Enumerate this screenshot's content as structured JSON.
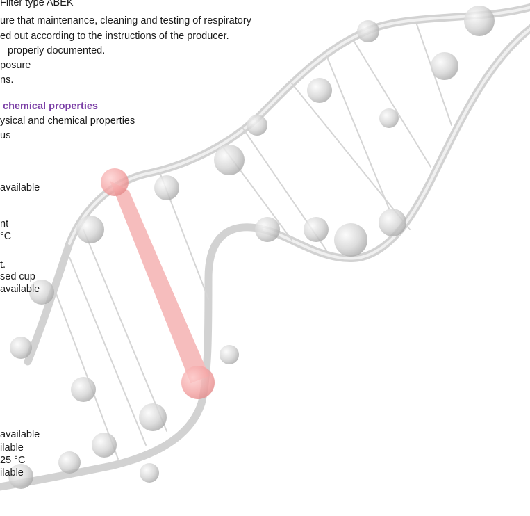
{
  "lines": [
    "Filter type ABEK",
    "ure that maintenance, cleaning and testing of respiratory",
    "ed out according to the instructions of the producer.",
    "properly documented.",
    "posure",
    "ns.",
    "chemical properties",
    "ysical and chemical properties",
    "us",
    "available",
    "nt",
    "°C",
    "t.",
    "sed cup",
    "available",
    "available",
    "ilable",
    "25 °C",
    "ilable"
  ],
  "colors": {
    "heading": "#7b3fa6",
    "helix_gray": "#b8b8b8",
    "helix_red": "#f2a0a0"
  }
}
